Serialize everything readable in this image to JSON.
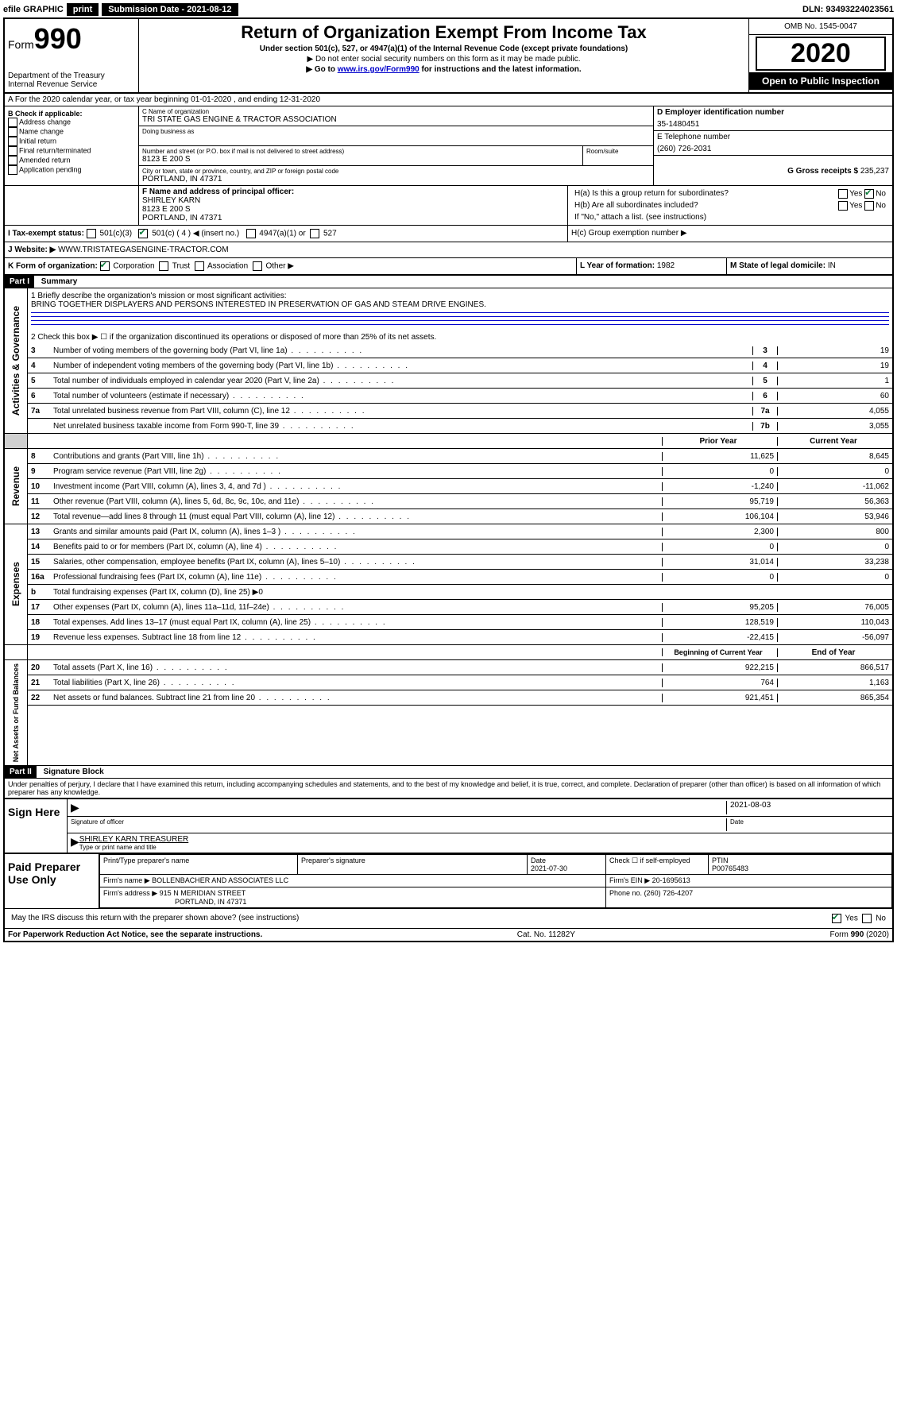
{
  "topbar": {
    "efile": "efile GRAPHIC",
    "print": "print",
    "subdate_label": "Submission Date - 2021-08-12",
    "dln": "DLN: 93493224023561"
  },
  "header": {
    "form_prefix": "Form",
    "form_number": "990",
    "dept": "Department of the Treasury\nInternal Revenue Service",
    "title": "Return of Organization Exempt From Income Tax",
    "sub1": "Under section 501(c), 527, or 4947(a)(1) of the Internal Revenue Code (except private foundations)",
    "sub2": "▶ Do not enter social security numbers on this form as it may be made public.",
    "sub3_pre": "▶ Go to ",
    "sub3_link": "www.irs.gov/Form990",
    "sub3_post": " for instructions and the latest information.",
    "omb": "OMB No. 1545-0047",
    "year": "2020",
    "inspection": "Open to Public Inspection"
  },
  "row_a": "A For the 2020 calendar year, or tax year beginning 01-01-2020    , and ending 12-31-2020",
  "box_b": {
    "label": "B Check if applicable:",
    "items": [
      "Address change",
      "Name change",
      "Initial return",
      "Final return/terminated",
      "Amended return",
      "Application pending"
    ]
  },
  "box_c": {
    "name_label": "C Name of organization",
    "name": "TRI STATE GAS ENGINE & TRACTOR ASSOCIATION",
    "dba_label": "Doing business as",
    "addr_label": "Number and street (or P.O. box if mail is not delivered to street address)",
    "room_label": "Room/suite",
    "addr": "8123 E 200 S",
    "city_label": "City or town, state or province, country, and ZIP or foreign postal code",
    "city": "PORTLAND, IN  47371"
  },
  "box_d": {
    "label": "D Employer identification number",
    "value": "35-1480451"
  },
  "box_e": {
    "label": "E Telephone number",
    "value": "(260) 726-2031"
  },
  "box_g": {
    "label": "G Gross receipts $",
    "value": "235,237"
  },
  "box_f": {
    "label": "F Name and address of principal officer:",
    "name": "SHIRLEY KARN",
    "addr1": "8123 E 200 S",
    "addr2": "PORTLAND, IN  47371"
  },
  "box_h": {
    "ha": "H(a)  Is this a group return for subordinates?",
    "hb": "H(b)  Are all subordinates included?",
    "hb_note": "If \"No,\" attach a list. (see instructions)",
    "hc": "H(c)  Group exemption number ▶",
    "yes": "Yes",
    "no": "No"
  },
  "box_i": {
    "label": "I  Tax-exempt status:",
    "c3": "501(c)(3)",
    "c": "501(c) ( 4 ) ◀ (insert no.)",
    "a1": "4947(a)(1) or",
    "s527": "527"
  },
  "box_j": {
    "label": "J  Website: ▶",
    "value": "WWW.TRISTATEGASENGINE-TRACTOR.COM"
  },
  "box_k": {
    "label": "K Form of organization:",
    "corp": "Corporation",
    "trust": "Trust",
    "assoc": "Association",
    "other": "Other ▶"
  },
  "box_l": {
    "label": "L Year of formation:",
    "value": "1982"
  },
  "box_m": {
    "label": "M State of legal domicile:",
    "value": "IN"
  },
  "part1": {
    "header": "Part I",
    "title": "Summary"
  },
  "summary": {
    "l1_label": "1  Briefly describe the organization's mission or most significant activities:",
    "l1_text": "BRING TOGETHER DISPLAYERS AND PERSONS INTERESTED IN PRESERVATION OF GAS AND STEAM DRIVE ENGINES.",
    "l2_label": "2  Check this box ▶ ☐  if the organization discontinued its operations or disposed of more than 25% of its net assets.",
    "lines_ag": [
      {
        "n": "3",
        "d": "Number of voting members of the governing body (Part VI, line 1a)",
        "c": "3",
        "v": "19"
      },
      {
        "n": "4",
        "d": "Number of independent voting members of the governing body (Part VI, line 1b)",
        "c": "4",
        "v": "19"
      },
      {
        "n": "5",
        "d": "Total number of individuals employed in calendar year 2020 (Part V, line 2a)",
        "c": "5",
        "v": "1"
      },
      {
        "n": "6",
        "d": "Total number of volunteers (estimate if necessary)",
        "c": "6",
        "v": "60"
      },
      {
        "n": "7a",
        "d": "Total unrelated business revenue from Part VIII, column (C), line 12",
        "c": "7a",
        "v": "4,055"
      },
      {
        "n": "",
        "d": "Net unrelated business taxable income from Form 990-T, line 39",
        "c": "7b",
        "v": "3,055"
      }
    ],
    "col_prior": "Prior Year",
    "col_current": "Current Year",
    "revenue": [
      {
        "n": "8",
        "d": "Contributions and grants (Part VIII, line 1h)",
        "p": "11,625",
        "c": "8,645"
      },
      {
        "n": "9",
        "d": "Program service revenue (Part VIII, line 2g)",
        "p": "0",
        "c": "0"
      },
      {
        "n": "10",
        "d": "Investment income (Part VIII, column (A), lines 3, 4, and 7d )",
        "p": "-1,240",
        "c": "-11,062"
      },
      {
        "n": "11",
        "d": "Other revenue (Part VIII, column (A), lines 5, 6d, 8c, 9c, 10c, and 11e)",
        "p": "95,719",
        "c": "56,363"
      },
      {
        "n": "12",
        "d": "Total revenue—add lines 8 through 11 (must equal Part VIII, column (A), line 12)",
        "p": "106,104",
        "c": "53,946"
      }
    ],
    "expenses": [
      {
        "n": "13",
        "d": "Grants and similar amounts paid (Part IX, column (A), lines 1–3 )",
        "p": "2,300",
        "c": "800"
      },
      {
        "n": "14",
        "d": "Benefits paid to or for members (Part IX, column (A), line 4)",
        "p": "0",
        "c": "0"
      },
      {
        "n": "15",
        "d": "Salaries, other compensation, employee benefits (Part IX, column (A), lines 5–10)",
        "p": "31,014",
        "c": "33,238"
      },
      {
        "n": "16a",
        "d": "Professional fundraising fees (Part IX, column (A), line 11e)",
        "p": "0",
        "c": "0"
      },
      {
        "n": "b",
        "d": "Total fundraising expenses (Part IX, column (D), line 25) ▶0",
        "p": "",
        "c": "",
        "shade": true
      },
      {
        "n": "17",
        "d": "Other expenses (Part IX, column (A), lines 11a–11d, 11f–24e)",
        "p": "95,205",
        "c": "76,005"
      },
      {
        "n": "18",
        "d": "Total expenses. Add lines 13–17 (must equal Part IX, column (A), line 25)",
        "p": "128,519",
        "c": "110,043"
      },
      {
        "n": "19",
        "d": "Revenue less expenses. Subtract line 18 from line 12",
        "p": "-22,415",
        "c": "-56,097"
      }
    ],
    "col_begin": "Beginning of Current Year",
    "col_end": "End of Year",
    "netassets": [
      {
        "n": "20",
        "d": "Total assets (Part X, line 16)",
        "p": "922,215",
        "c": "866,517"
      },
      {
        "n": "21",
        "d": "Total liabilities (Part X, line 26)",
        "p": "764",
        "c": "1,163"
      },
      {
        "n": "22",
        "d": "Net assets or fund balances. Subtract line 21 from line 20",
        "p": "921,451",
        "c": "865,354"
      }
    ],
    "side_ag": "Activities & Governance",
    "side_rev": "Revenue",
    "side_exp": "Expenses",
    "side_na": "Net Assets or Fund Balances"
  },
  "part2": {
    "header": "Part II",
    "title": "Signature Block"
  },
  "sig": {
    "perjury": "Under penalties of perjury, I declare that I have examined this return, including accompanying schedules and statements, and to the best of my knowledge and belief, it is true, correct, and complete. Declaration of preparer (other than officer) is based on all information of which preparer has any knowledge.",
    "sign_here": "Sign Here",
    "sig_officer": "Signature of officer",
    "date": "2021-08-03",
    "date_label": "Date",
    "name_title": "SHIRLEY KARN  TREASURER",
    "name_title_label": "Type or print name and title",
    "paid": "Paid Preparer Use Only",
    "prep_name_label": "Print/Type preparer's name",
    "prep_sig_label": "Preparer's signature",
    "prep_date_label": "Date",
    "prep_date": "2021-07-30",
    "check_self": "Check ☐ if self-employed",
    "ptin_label": "PTIN",
    "ptin": "P00765483",
    "firm_name_label": "Firm's name    ▶",
    "firm_name": "BOLLENBACHER AND ASSOCIATES LLC",
    "firm_ein_label": "Firm's EIN ▶",
    "firm_ein": "20-1695613",
    "firm_addr_label": "Firm's address ▶",
    "firm_addr": "915 N MERIDIAN STREET",
    "firm_city": "PORTLAND, IN  47371",
    "phone_label": "Phone no.",
    "phone": "(260) 726-4207",
    "discuss": "May the IRS discuss this return with the preparer shown above? (see instructions)",
    "yes": "Yes",
    "no": "No"
  },
  "footer": {
    "pra": "For Paperwork Reduction Act Notice, see the separate instructions.",
    "cat": "Cat. No. 11282Y",
    "form": "Form 990 (2020)"
  }
}
